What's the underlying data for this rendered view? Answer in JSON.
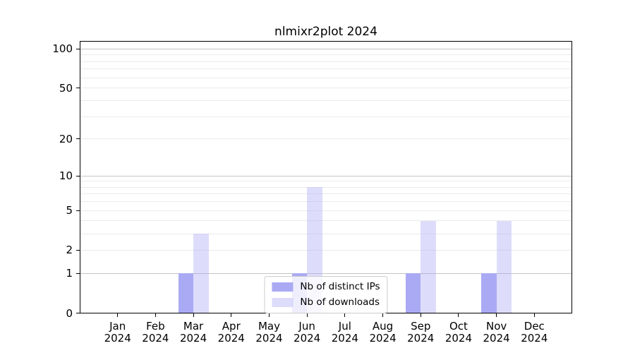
{
  "chart_data": {
    "type": "bar",
    "title": "nlmixr2plot 2024",
    "categories": [
      "Jan",
      "Feb",
      "Mar",
      "Apr",
      "May",
      "Jun",
      "Jul",
      "Aug",
      "Sep",
      "Oct",
      "Nov",
      "Dec"
    ],
    "year": "2024",
    "series": [
      {
        "name": "Nb of distinct IPs",
        "color": "#aaaaf4",
        "values": [
          0,
          0,
          1,
          0,
          0,
          1,
          0,
          0,
          1,
          0,
          1,
          0
        ]
      },
      {
        "name": "Nb of downloads",
        "color": "rgba(170,170,244,0.40)",
        "values": [
          0,
          0,
          3,
          0,
          0,
          8,
          0,
          0,
          4,
          0,
          4,
          0
        ]
      }
    ],
    "yscale": "log1p",
    "ylim": [
      0,
      115
    ],
    "yticks": [
      0,
      1,
      2,
      5,
      10,
      20,
      50,
      100
    ],
    "grid": true,
    "grid_major_values": [
      1,
      10,
      100
    ],
    "grid_minor_values": [
      2,
      3,
      4,
      5,
      6,
      7,
      8,
      9,
      20,
      30,
      40,
      50,
      60,
      70,
      80,
      90
    ],
    "grid_major_color": "#c4c4c4",
    "grid_minor_color": "#ebebeb",
    "legend_position": "lower center",
    "xlabel": "",
    "ylabel": ""
  }
}
